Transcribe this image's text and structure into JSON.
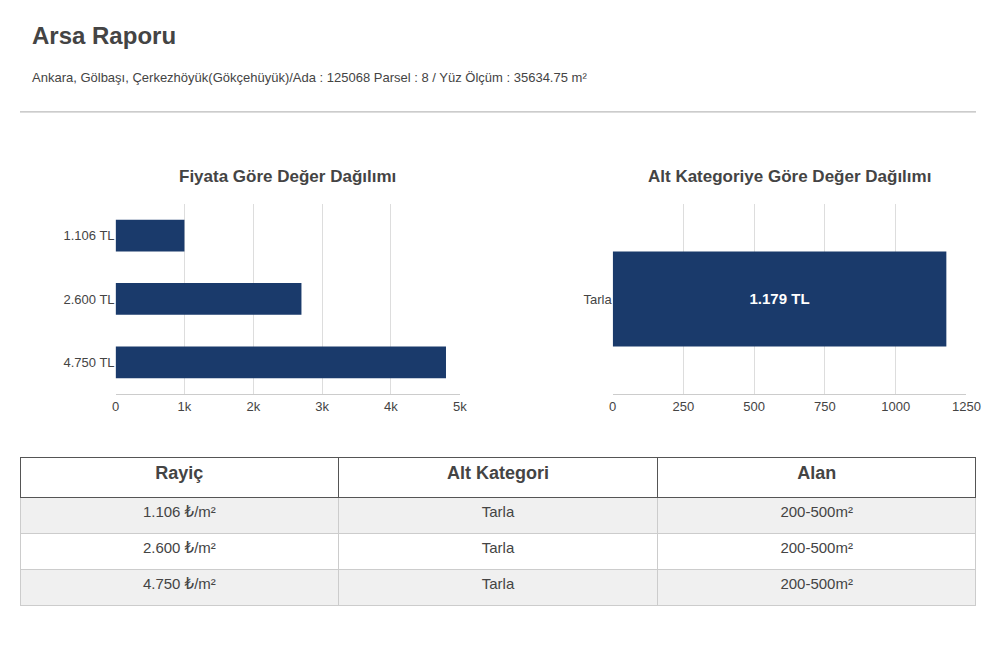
{
  "title": "Arsa Raporu",
  "subtitle": "Ankara, Gölbaşı, Çerkezhöyük(Gökçehüyük)/Ada : 125068 Parsel : 8 / Yüz Ölçüm : 35634.75 m²",
  "chart_data": [
    {
      "type": "bar",
      "orientation": "horizontal",
      "title": "Fiyata Göre Değer Dağılımı",
      "categories": [
        "1.106 TL",
        "2.600 TL",
        "4.750 TL"
      ],
      "values": [
        1000,
        2700,
        4800
      ],
      "color": "#1a3a6b",
      "xlim": [
        0,
        5000
      ],
      "xticks": [
        0,
        {
          "value": 1000,
          "label": "1k"
        },
        {
          "value": 2000,
          "label": "2k"
        },
        {
          "value": 3000,
          "label": "3k"
        },
        {
          "value": 4000,
          "label": "4k"
        },
        {
          "value": 5000,
          "label": "5k"
        }
      ],
      "grid": true
    },
    {
      "type": "bar",
      "orientation": "horizontal",
      "title": "Alt Kategoriye Göre Değer Dağılımı",
      "categories": [
        "Tarla"
      ],
      "values": [
        1179
      ],
      "value_labels": [
        "1.179 TL"
      ],
      "data_labels": true,
      "color": "#1a3a6b",
      "xlim": [
        0,
        1250
      ],
      "xticks": [
        0,
        250,
        500,
        750,
        1000,
        1250
      ],
      "grid": true
    }
  ],
  "table": {
    "headers": [
      "Rayiç",
      "Alt Kategori",
      "Alan"
    ],
    "rows": [
      [
        "1.106 ₺/m²",
        "Tarla",
        "200-500m²"
      ],
      [
        "2.600 ₺/m²",
        "Tarla",
        "200-500m²"
      ],
      [
        "4.750 ₺/m²",
        "Tarla",
        "200-500m²"
      ]
    ],
    "row_colors": [
      "#f0f0f0",
      "#ffffff",
      "#f0f0f0"
    ]
  }
}
